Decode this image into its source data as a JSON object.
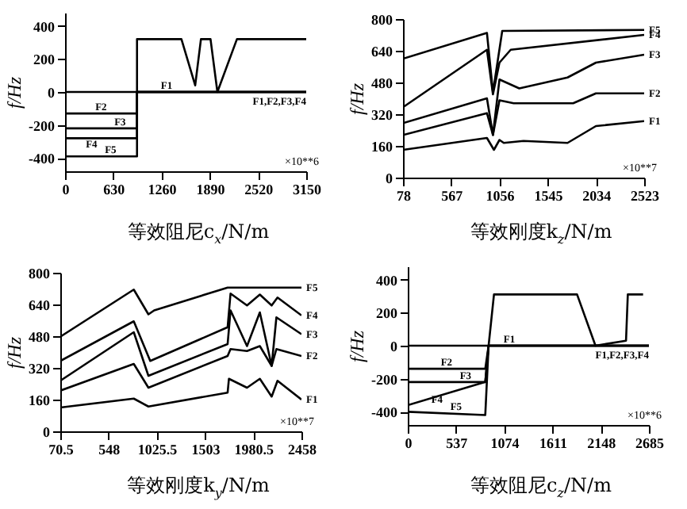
{
  "chart_data": [
    {
      "type": "line",
      "xlabel": "等效阻尼c$_{x}$/N/m",
      "ylabel": "f/Hz",
      "xlim": [
        0,
        3150
      ],
      "xticks": [
        0,
        630,
        1260,
        1890,
        2520,
        3150
      ],
      "ylim": [
        -480,
        480
      ],
      "yticks": [
        -400,
        -200,
        0,
        200,
        400
      ],
      "annotations": [
        {
          "text": "F1,F2,F3,F4",
          "x": 3150,
          "y": 0
        },
        "×10**6"
      ],
      "series": [
        {
          "name": "F1",
          "color": "#000000",
          "x": [
            0,
            3150
          ],
          "values": [
            0,
            0
          ]
        },
        {
          "name": "F2",
          "color": "#000000",
          "x": [
            0,
            940,
            940,
            3150
          ],
          "values": [
            -130,
            -130,
            0,
            0
          ]
        },
        {
          "name": "F3",
          "color": "#000000",
          "x": [
            0,
            940,
            940,
            3150
          ],
          "values": [
            -220,
            -220,
            0,
            0
          ]
        },
        {
          "name": "F4",
          "color": "#000000",
          "x": [
            0,
            940,
            940,
            3150
          ],
          "values": [
            -280,
            -280,
            0,
            0
          ]
        },
        {
          "name": "F5",
          "color": "#000000",
          "x": [
            0,
            940,
            940,
            1520,
            1700,
            1775,
            1900,
            1990,
            2245,
            3150
          ],
          "values": [
            -390,
            -390,
            320,
            320,
            40,
            320,
            320,
            0,
            320,
            320
          ]
        }
      ]
    },
    {
      "type": "line",
      "xlabel": "等效刚度k$_{z}$/N/m",
      "ylabel": "f/Hz",
      "xlim": [
        78,
        2523
      ],
      "xticks": [
        78,
        567,
        1056,
        1545,
        2034,
        2523
      ],
      "ylim": [
        0,
        800
      ],
      "yticks": [
        0,
        160,
        320,
        480,
        640,
        800
      ],
      "annotations": [
        "×10**7"
      ],
      "series": [
        {
          "name": "F1",
          "color": "#000000",
          "x": [
            78,
            929,
            1000,
            1056,
            1100,
            1300,
            1746,
            2034,
            2523
          ],
          "values": [
            140,
            200,
            140,
            190,
            175,
            185,
            175,
            260,
            285
          ]
        },
        {
          "name": "F2",
          "color": "#000000",
          "x": [
            78,
            929,
            990,
            1056,
            1200,
            1803,
            2034,
            2523
          ],
          "values": [
            215,
            325,
            215,
            390,
            375,
            375,
            425,
            425
          ]
        },
        {
          "name": "F3",
          "color": "#000000",
          "x": [
            78,
            929,
            990,
            1056,
            1257,
            1746,
            2034,
            2523
          ],
          "values": [
            275,
            400,
            215,
            495,
            450,
            505,
            580,
            620
          ]
        },
        {
          "name": "F4",
          "color": "#000000",
          "x": [
            78,
            929,
            990,
            1056,
            1170,
            2523
          ],
          "values": [
            355,
            645,
            420,
            580,
            645,
            720
          ]
        },
        {
          "name": "F5",
          "color": "#000000",
          "x": [
            78,
            929,
            990,
            1084,
            2523
          ],
          "values": [
            600,
            730,
            430,
            740,
            745
          ]
        }
      ]
    },
    {
      "type": "line",
      "xlabel": "等效刚度k$_{y}$/N/m",
      "ylabel": "f/Hz",
      "xlim": [
        70.5,
        2458
      ],
      "xticks": [
        70.5,
        548,
        1025.5,
        1503,
        1980.5,
        2458
      ],
      "ylim": [
        0,
        800
      ],
      "yticks": [
        0,
        160,
        320,
        480,
        640,
        800
      ],
      "annotations": [
        "×10**7"
      ],
      "series": [
        {
          "name": "F1",
          "color": "#000000",
          "x": [
            70.5,
            798,
            943,
            1727,
            1740,
            1919,
            2046,
            2163,
            2221,
            2458
          ],
          "values": [
            120,
            165,
            125,
            195,
            265,
            220,
            265,
            175,
            255,
            160
          ]
        },
        {
          "name": "F2",
          "color": "#000000",
          "x": [
            70.5,
            798,
            943,
            1727,
            1756,
            1919,
            2046,
            2163,
            2210,
            2458
          ],
          "values": [
            205,
            340,
            220,
            380,
            415,
            405,
            430,
            330,
            415,
            380
          ]
        },
        {
          "name": "F3",
          "color": "#000000",
          "x": [
            70.5,
            798,
            943,
            1727,
            1756,
            1919,
            2046,
            2163,
            2210,
            2458
          ],
          "values": [
            255,
            500,
            280,
            440,
            610,
            430,
            600,
            330,
            575,
            490
          ]
        },
        {
          "name": "F4",
          "color": "#000000",
          "x": [
            70.5,
            798,
            961,
            1727,
            1756,
            1919,
            2046,
            2163,
            2221,
            2458
          ],
          "values": [
            355,
            555,
            355,
            525,
            695,
            635,
            690,
            635,
            675,
            585
          ]
        },
        {
          "name": "F5",
          "color": "#000000",
          "x": [
            70.5,
            798,
            943,
            1000,
            1727,
            2458
          ],
          "values": [
            477,
            715,
            590,
            610,
            725,
            725
          ]
        }
      ]
    },
    {
      "type": "line",
      "xlabel": "等效阻尼c$_{z}$/N/m",
      "ylabel": "f/Hz",
      "xlim": [
        0,
        2685
      ],
      "xticks": [
        0,
        537,
        1074,
        1611,
        2148,
        2685
      ],
      "ylim": [
        -480,
        480
      ],
      "yticks": [
        -400,
        -200,
        0,
        200,
        400
      ],
      "annotations": [
        {
          "text": "F1,F2,F3,F4",
          "x": 2685,
          "y": 0
        },
        "×10**6"
      ],
      "series": [
        {
          "name": "F1",
          "color": "#000000",
          "x": [
            0,
            2685
          ],
          "values": [
            0,
            0
          ]
        },
        {
          "name": "F2",
          "color": "#000000",
          "x": [
            0,
            863,
            900,
            2685
          ],
          "values": [
            -140,
            -140,
            0,
            0
          ]
        },
        {
          "name": "F3",
          "color": "#000000",
          "x": [
            0,
            863,
            900,
            2685
          ],
          "values": [
            -220,
            -220,
            0,
            0
          ]
        },
        {
          "name": "F4",
          "color": "#000000",
          "x": [
            0,
            863,
            900,
            2685
          ],
          "values": [
            -360,
            -220,
            0,
            0
          ]
        },
        {
          "name": "F5",
          "color": "#000000",
          "x": [
            0,
            863,
            900,
            960,
            1885,
            2090,
            2430,
            2450,
            2620
          ],
          "values": [
            -400,
            -420,
            0,
            310,
            310,
            0,
            30,
            310,
            310
          ]
        }
      ]
    }
  ]
}
